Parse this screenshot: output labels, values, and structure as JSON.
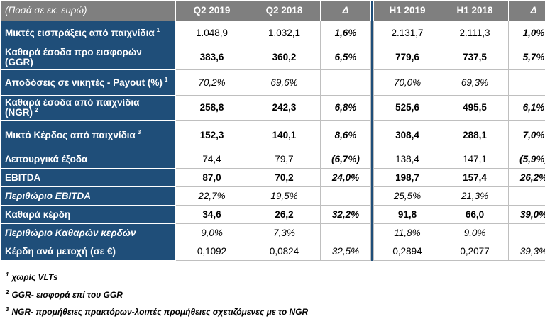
{
  "header": {
    "label": "(Ποσά σε εκ. ευρώ)",
    "columns": [
      "Q2 2019",
      "Q2 2018",
      "Δ",
      "H1 2019",
      "H1 2018",
      "Δ"
    ]
  },
  "rows": [
    {
      "label": "Μικτές εισπράξεις από παιχνίδια",
      "sup": "1",
      "values": [
        "1.048,9",
        "1.032,1",
        "1,6%",
        "2.131,7",
        "2.111,3",
        "1,0%"
      ],
      "style": [
        "n",
        "n",
        "bi",
        "n",
        "n",
        "bi"
      ],
      "h": 34
    },
    {
      "label": "Καθαρά έσοδα προ εισφορών (GGR)",
      "sup": "",
      "values": [
        "383,6",
        "360,2",
        "6,5%",
        "779,6",
        "737,5",
        "5,7%"
      ],
      "style": [
        "b",
        "b",
        "bi",
        "b",
        "b",
        "bi"
      ],
      "h": 35
    },
    {
      "label": "Αποδόσεις σε νικητές - Payout (%)",
      "sup": "1",
      "values": [
        "70,2%",
        "69,6%",
        "",
        "70,0%",
        "69,3%",
        ""
      ],
      "style": [
        "i",
        "i",
        "i",
        "i",
        "i",
        "i"
      ],
      "h": 36
    },
    {
      "label": "Καθαρά έσοδα από παιχνίδια (NGR)",
      "sup": "2",
      "values": [
        "258,8",
        "242,3",
        "6,8%",
        "525,6",
        "495,5",
        "6,1%"
      ],
      "style": [
        "b",
        "b",
        "bi",
        "b",
        "b",
        "bi"
      ],
      "h": 35
    },
    {
      "label": "Μικτό Κέρδος από παιχνίδια",
      "sup": "3",
      "values": [
        "152,3",
        "140,1",
        "8,6%",
        "308,4",
        "288,1",
        "7,0%"
      ],
      "style": [
        "b",
        "b",
        "bi",
        "b",
        "b",
        "bi"
      ],
      "h": 42
    },
    {
      "label": "Λειτουργικά έξοδα",
      "sup": "",
      "values": [
        "74,4",
        "79,7",
        "(6,7%)",
        "138,4",
        "147,1",
        "(5,9%)"
      ],
      "style": [
        "n",
        "n",
        "bi",
        "n",
        "n",
        "bi"
      ],
      "h": 26
    },
    {
      "label": "EBITDA",
      "sup": "",
      "values": [
        "87,0",
        "70,2",
        "24,0%",
        "198,7",
        "157,4",
        "26,2%"
      ],
      "style": [
        "b",
        "b",
        "bi",
        "b",
        "b",
        "bi"
      ],
      "h": 26
    },
    {
      "label": "Περιθώριο EBITDA",
      "sup": "",
      "italic": true,
      "values": [
        "22,7%",
        "19,5%",
        "",
        "25,5%",
        "21,3%",
        ""
      ],
      "style": [
        "i",
        "i",
        "i",
        "i",
        "i",
        "i"
      ],
      "h": 26
    },
    {
      "label": "Καθαρά κέρδη",
      "sup": "",
      "values": [
        "34,6",
        "26,2",
        "32,2%",
        "91,8",
        "66,0",
        "39,0%"
      ],
      "style": [
        "b",
        "b",
        "bi",
        "b",
        "b",
        "bi"
      ],
      "h": 26
    },
    {
      "label": "Περιθώριο Καθαρών κερδών",
      "sup": "",
      "italic": true,
      "values": [
        "9,0%",
        "7,3%",
        "",
        "11,8%",
        "9,0%",
        ""
      ],
      "style": [
        "i",
        "i",
        "i",
        "i",
        "i",
        "i"
      ],
      "h": 26
    },
    {
      "label": "Κέρδη ανά μετοχή (σε €)",
      "sup": "",
      "values": [
        "0,1092",
        "0,0824",
        "32,5%",
        "0,2894",
        "0,2077",
        "39,3%"
      ],
      "style": [
        "n",
        "n",
        "i",
        "n",
        "n",
        "i"
      ],
      "h": 26
    }
  ],
  "notes": [
    {
      "sup": "1",
      "text": "χωρίς VLTs"
    },
    {
      "sup": "2",
      "text": "GGR- εισφορά επί του GGR"
    },
    {
      "sup": "3",
      "text": "NGR- προμήθειες πρακτόρων-λοιπές προμήθειες σχετιζόμενες με το NGR"
    }
  ]
}
